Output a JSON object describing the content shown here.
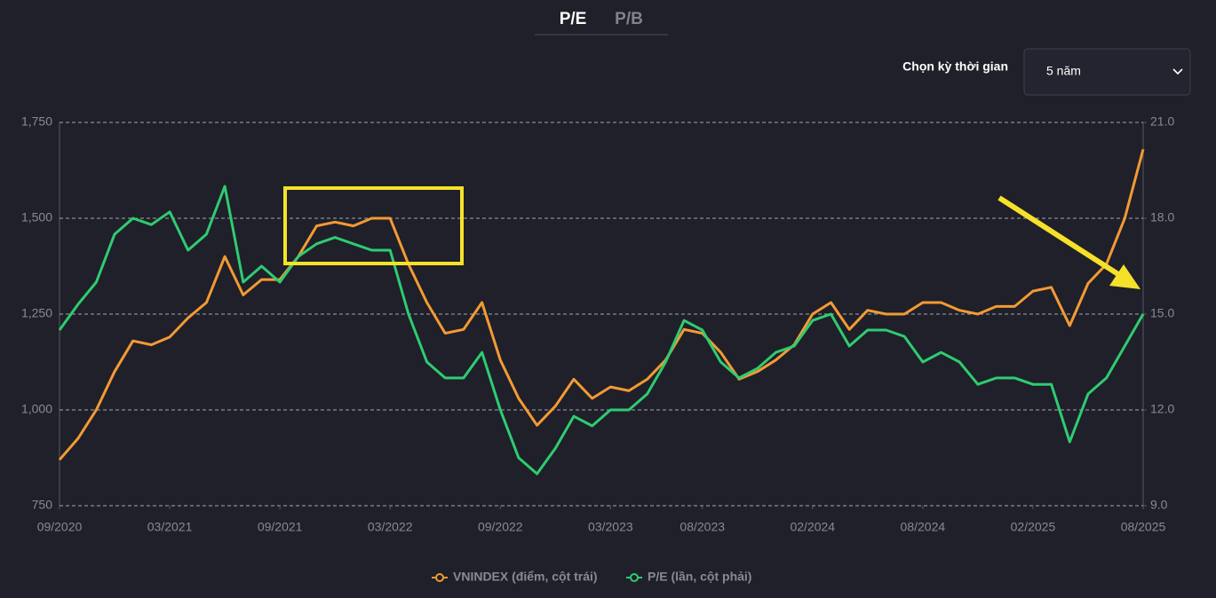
{
  "tabs": [
    "P/E",
    "P/B"
  ],
  "period_label": "Chọn kỳ thời gian",
  "period_value": "5 năm",
  "chart_data": {
    "type": "line",
    "x": [
      "09/2020",
      "10/2020",
      "11/2020",
      "12/2020",
      "01/2021",
      "02/2021",
      "03/2021",
      "04/2021",
      "05/2021",
      "06/2021",
      "07/2021",
      "08/2021",
      "09/2021",
      "10/2021",
      "11/2021",
      "12/2021",
      "01/2022",
      "02/2022",
      "03/2022",
      "04/2022",
      "05/2022",
      "06/2022",
      "07/2022",
      "08/2022",
      "09/2022",
      "10/2022",
      "11/2022",
      "12/2022",
      "01/2023",
      "02/2023",
      "03/2023",
      "04/2023",
      "05/2023",
      "06/2023",
      "07/2023",
      "08/2023",
      "09/2023",
      "10/2023",
      "11/2023",
      "12/2023",
      "01/2024",
      "02/2024",
      "03/2024",
      "04/2024",
      "05/2024",
      "06/2024",
      "07/2024",
      "08/2024",
      "09/2024",
      "10/2024",
      "11/2024",
      "12/2024",
      "01/2025",
      "02/2025",
      "03/2025",
      "04/2025",
      "05/2025",
      "06/2025",
      "07/2025",
      "08/2025"
    ],
    "xticks": [
      "09/2020",
      "03/2021",
      "09/2021",
      "03/2022",
      "09/2022",
      "03/2023",
      "08/2023",
      "02/2024",
      "08/2024",
      "02/2025",
      "08/2025"
    ],
    "ylim": [
      750,
      1750
    ],
    "yticks": [
      750,
      {
        "value": 1000,
        "label": "1,000"
      },
      {
        "value": 1250,
        "label": "1,250"
      },
      {
        "value": 1500,
        "label": "1,500"
      },
      {
        "value": 1750,
        "label": "1,750"
      }
    ],
    "y2lim": [
      9,
      21
    ],
    "y2ticks": [
      {
        "value": 9,
        "label": "9.0"
      },
      {
        "value": 12,
        "label": "12.0"
      },
      {
        "value": 15,
        "label": "15.0"
      },
      {
        "value": 18,
        "label": "18.0"
      },
      {
        "value": 21,
        "label": "21.0"
      }
    ],
    "grid": true,
    "series": [
      {
        "name": "VNINDEX (điểm, cột trái)",
        "color": "#f39a34",
        "values": [
          870,
          925,
          1000,
          1100,
          1180,
          1170,
          1190,
          1240,
          1280,
          1400,
          1300,
          1340,
          1340,
          1400,
          1480,
          1490,
          1480,
          1500,
          1500,
          1380,
          1280,
          1200,
          1210,
          1280,
          1130,
          1030,
          960,
          1010,
          1080,
          1030,
          1060,
          1050,
          1080,
          1130,
          1210,
          1200,
          1150,
          1080,
          1100,
          1130,
          1170,
          1250,
          1280,
          1210,
          1260,
          1250,
          1250,
          1280,
          1280,
          1260,
          1250,
          1270,
          1270,
          1310,
          1320,
          1220,
          1330,
          1380,
          1500,
          1680
        ]
      },
      {
        "name": "P/E (lần, cột phải)",
        "color": "#2ecc71",
        "axis": "y2",
        "values": [
          14.5,
          15.3,
          16.0,
          17.5,
          18.0,
          17.8,
          18.2,
          17.0,
          17.5,
          19.0,
          16.0,
          16.5,
          16.0,
          16.8,
          17.2,
          17.4,
          17.2,
          17.0,
          17.0,
          15.0,
          13.5,
          13.0,
          13.0,
          13.8,
          12.0,
          10.5,
          10.0,
          10.8,
          11.8,
          11.5,
          12.0,
          12.0,
          12.5,
          13.5,
          14.8,
          14.5,
          13.5,
          13.0,
          13.3,
          13.8,
          14.0,
          14.8,
          15.0,
          14.0,
          14.5,
          14.5,
          14.3,
          13.5,
          13.8,
          13.5,
          12.8,
          13.0,
          13.0,
          12.8,
          12.8,
          11.0,
          12.5,
          13.0,
          14.0,
          15.0
        ]
      }
    ]
  }
}
